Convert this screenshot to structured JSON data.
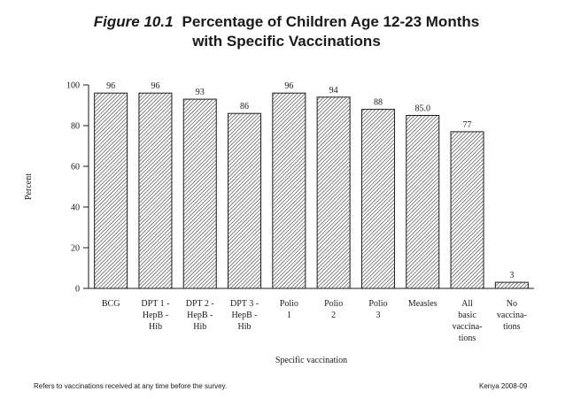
{
  "figure": {
    "label": "Figure 10.1",
    "title_line1": "Percentage of Children Age 12-23 Months",
    "title_line2": "with Specific Vaccinations"
  },
  "footer": {
    "note": "Refers to vaccinations received at any time before the survey.",
    "source": "Kenya 2008-09"
  },
  "chart_data": {
    "type": "bar",
    "title": "Percentage of Children Age 12-23 Months with Specific Vaccinations",
    "xlabel": "Specific vaccination",
    "ylabel": "Percent",
    "ylim": [
      0,
      100
    ],
    "yticks": [
      0,
      20,
      40,
      60,
      80,
      100
    ],
    "grid": false,
    "categories": [
      [
        "BCG"
      ],
      [
        "DPT 1 -",
        "HepB -",
        "Hib"
      ],
      [
        "DPT 2 -",
        "HepB -",
        "Hib"
      ],
      [
        "DPT 3 -",
        "HepB -",
        "Hib"
      ],
      [
        "Polio",
        "1"
      ],
      [
        "Polio",
        "2"
      ],
      [
        "Polio",
        "3"
      ],
      [
        "Measles"
      ],
      [
        "All",
        "basic",
        "vaccina-",
        "tions"
      ],
      [
        "No",
        "vaccina-",
        "tions"
      ]
    ],
    "values": [
      96,
      96,
      93,
      86,
      96,
      94,
      88,
      85.0,
      77,
      3
    ],
    "value_labels": [
      "96",
      "96",
      "93",
      "86",
      "96",
      "94",
      "88",
      "85.0",
      "77",
      "3"
    ],
    "bar_fill": "hatched",
    "bar_color": "#1a1a1a"
  }
}
